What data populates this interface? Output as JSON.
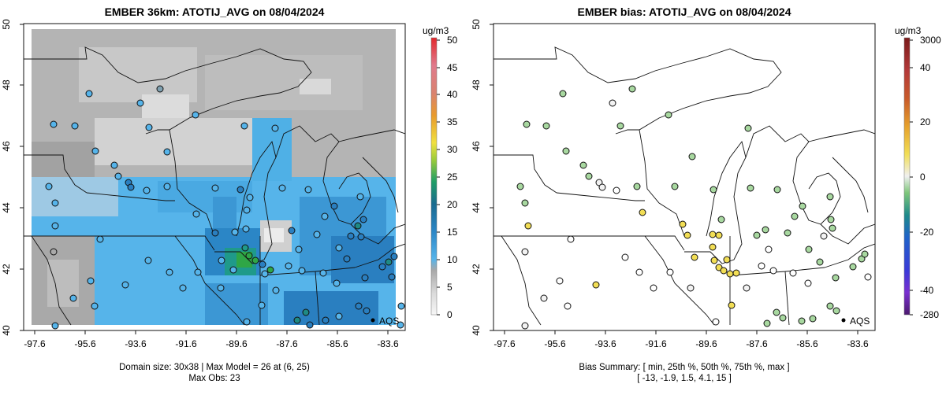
{
  "left_panel": {
    "title": "EMBER 36km: ATOTIJ_AVG on 08/04/2024",
    "x_ticks": [
      "-97.6",
      "-95.6",
      "-93.6",
      "-91.6",
      "-89.6",
      "-87.6",
      "-85.6",
      "-83.6"
    ],
    "y_ticks": [
      "40",
      "42",
      "44",
      "46",
      "48",
      "50"
    ],
    "legend_unit": "ug/m3",
    "legend_ticks": [
      "0",
      "5",
      "10",
      "15",
      "20",
      "25",
      "30",
      "35",
      "40",
      "45",
      "50"
    ],
    "station_label": "AQS",
    "footer_line1": "Domain size: 30x38 | Max Model = 26 at (6, 25)",
    "footer_line2": "Max Obs: 23"
  },
  "right_panel": {
    "title": "EMBER bias: ATOTIJ_AVG on 08/04/2024",
    "x_ticks": [
      "-97.6",
      "-95.6",
      "-93.6",
      "-91.6",
      "-89.6",
      "-87.6",
      "-85.6",
      "-83.6"
    ],
    "y_ticks": [
      "40",
      "42",
      "44",
      "46",
      "48",
      "50"
    ],
    "legend_unit": "ug/m3",
    "legend_ticks": [
      "3000",
      "40",
      "20",
      "0",
      "-20",
      "-40",
      "-280"
    ],
    "station_label": "AQS",
    "footer_line1": "Bias Summary: [ min, 25th %, 50th %, 75th %, max ]",
    "footer_line2": "[ -13,   -1.9,   1.5,   4.1,   15 ]"
  },
  "colors": {
    "gray_low": "#e6e6e6",
    "gray_mid": "#a9a9a9",
    "blue_10": "#4fb0e6",
    "blue_15": "#2a7fc0",
    "teal_20": "#1f8a84",
    "green_25": "#2fa646",
    "bias_green": "#a8d8a0",
    "bias_yellow": "#f2de55",
    "bias_white": "#f2f2f2"
  }
}
